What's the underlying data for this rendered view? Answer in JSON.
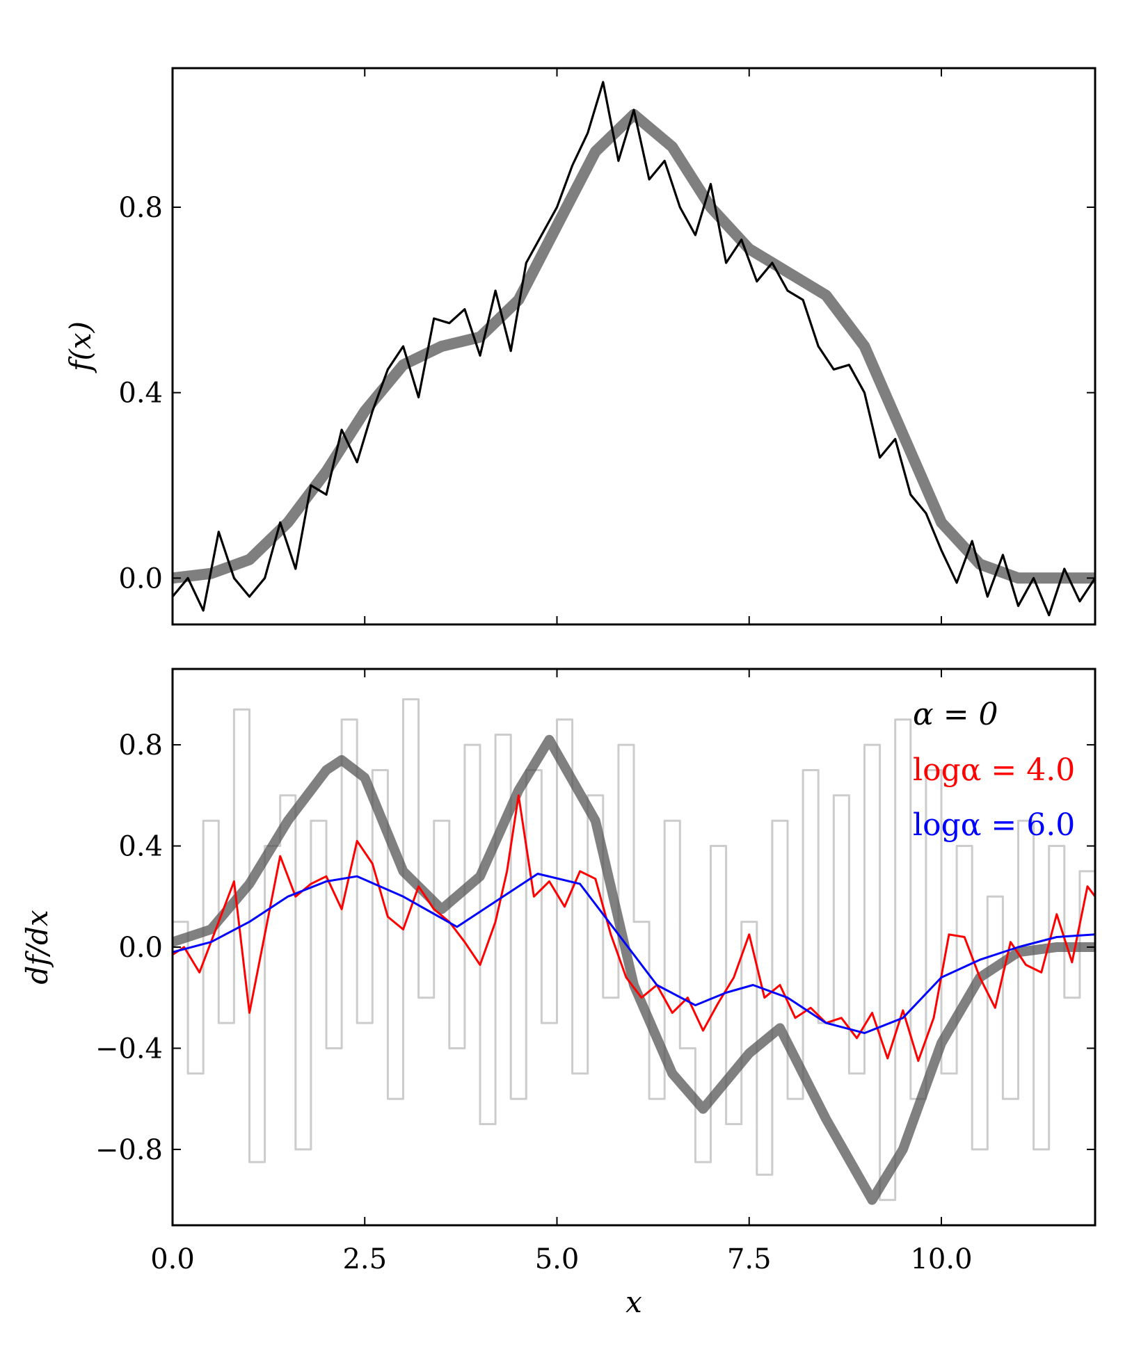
{
  "figure": {
    "shared_xlabel": "x"
  },
  "chart_data": [
    {
      "type": "line",
      "panel": "top",
      "xlabel": "",
      "ylabel": "f(x)",
      "xlim": [
        0,
        12
      ],
      "ylim": [
        -0.1,
        1.1
      ],
      "x_ticks": [
        0,
        2.5,
        5,
        7.5,
        10
      ],
      "y_ticks": [
        0.0,
        0.4,
        0.8
      ],
      "y_tick_labels": [
        "0.0",
        "0.4",
        "0.8"
      ],
      "grid": false,
      "series": [
        {
          "role": "true-function",
          "color": "#7f7f7f",
          "x": [
            0,
            0.5,
            1.0,
            1.5,
            2.0,
            2.5,
            3.0,
            3.5,
            4.0,
            4.5,
            5.0,
            5.5,
            6.0,
            6.5,
            7.0,
            7.5,
            8.0,
            8.5,
            9.0,
            9.5,
            10.0,
            10.5,
            11.0,
            11.5,
            12.0
          ],
          "y": [
            0.0,
            0.01,
            0.04,
            0.12,
            0.23,
            0.36,
            0.46,
            0.5,
            0.52,
            0.6,
            0.76,
            0.92,
            1.0,
            0.93,
            0.8,
            0.71,
            0.66,
            0.61,
            0.5,
            0.31,
            0.12,
            0.03,
            0.0,
            0.0,
            0.0
          ]
        },
        {
          "role": "noisy-data",
          "color": "#000000",
          "x": [
            0.0,
            0.2,
            0.4,
            0.6,
            0.8,
            1.0,
            1.2,
            1.4,
            1.6,
            1.8,
            2.0,
            2.2,
            2.4,
            2.6,
            2.8,
            3.0,
            3.2,
            3.4,
            3.6,
            3.8,
            4.0,
            4.2,
            4.4,
            4.6,
            4.8,
            5.0,
            5.2,
            5.4,
            5.6,
            5.8,
            6.0,
            6.2,
            6.4,
            6.6,
            6.8,
            7.0,
            7.2,
            7.4,
            7.6,
            7.8,
            8.0,
            8.2,
            8.4,
            8.6,
            8.8,
            9.0,
            9.2,
            9.4,
            9.6,
            9.8,
            10.0,
            10.2,
            10.4,
            10.6,
            10.8,
            11.0,
            11.2,
            11.4,
            11.6,
            11.8,
            12.0
          ],
          "y": [
            -0.04,
            0.0,
            -0.07,
            0.1,
            0.0,
            -0.04,
            0.0,
            0.12,
            0.02,
            0.2,
            0.18,
            0.32,
            0.25,
            0.36,
            0.45,
            0.5,
            0.39,
            0.56,
            0.55,
            0.58,
            0.48,
            0.62,
            0.49,
            0.68,
            0.74,
            0.8,
            0.89,
            0.96,
            1.07,
            0.9,
            1.01,
            0.86,
            0.9,
            0.8,
            0.74,
            0.85,
            0.68,
            0.73,
            0.64,
            0.68,
            0.62,
            0.6,
            0.5,
            0.45,
            0.46,
            0.4,
            0.26,
            0.3,
            0.18,
            0.14,
            0.06,
            -0.01,
            0.08,
            -0.04,
            0.05,
            -0.06,
            0.0,
            -0.08,
            0.02,
            -0.05,
            0.0
          ]
        }
      ]
    },
    {
      "type": "line",
      "panel": "bottom",
      "xlabel": "x",
      "ylabel": "df/dx",
      "xlim": [
        0,
        12
      ],
      "ylim": [
        -1.1,
        1.1
      ],
      "x_ticks": [
        0,
        2.5,
        5,
        7.5,
        10
      ],
      "x_tick_labels": [
        "0.0",
        "2.5",
        "5.0",
        "7.5",
        "10.0"
      ],
      "y_ticks": [
        -0.8,
        -0.4,
        0.0,
        0.4,
        0.8
      ],
      "y_tick_labels": [
        "−0.8",
        "−0.4",
        "0.0",
        "0.4",
        "0.8"
      ],
      "grid": false,
      "legend": {
        "placement": "top-right",
        "entries": [
          "α = 0",
          "logα = 4.0",
          "logα = 6.0"
        ]
      },
      "series": [
        {
          "role": "true-derivative",
          "color": "#555555",
          "x": [
            0,
            0.5,
            1.0,
            1.5,
            2.0,
            2.2,
            2.5,
            3.0,
            3.5,
            4.0,
            4.5,
            4.9,
            5.5,
            6.0,
            6.5,
            6.9,
            7.5,
            7.9,
            8.5,
            9.1,
            9.5,
            10.0,
            10.5,
            11.0,
            11.5,
            12.0
          ],
          "y": [
            0.02,
            0.07,
            0.25,
            0.5,
            0.7,
            0.74,
            0.67,
            0.3,
            0.15,
            0.28,
            0.62,
            0.82,
            0.5,
            -0.15,
            -0.5,
            -0.64,
            -0.42,
            -0.32,
            -0.68,
            -1.0,
            -0.8,
            -0.38,
            -0.12,
            -0.02,
            0.0,
            0.0
          ]
        },
        {
          "role": "noisy-derivative",
          "color": "#cccccc",
          "x": [
            0.0,
            0.2,
            0.4,
            0.6,
            0.8,
            1.0,
            1.2,
            1.4,
            1.6,
            1.8,
            2.0,
            2.2,
            2.4,
            2.6,
            2.8,
            3.0,
            3.2,
            3.4,
            3.6,
            3.8,
            4.0,
            4.2,
            4.4,
            4.6,
            4.8,
            5.0,
            5.2,
            5.4,
            5.6,
            5.8,
            6.0,
            6.2,
            6.4,
            6.6,
            6.8,
            7.0,
            7.2,
            7.4,
            7.6,
            7.8,
            8.0,
            8.2,
            8.4,
            8.6,
            8.8,
            9.0,
            9.2,
            9.4,
            9.6,
            9.8,
            10.0,
            10.2,
            10.4,
            10.6,
            10.8,
            11.0,
            11.2,
            11.4,
            11.6,
            11.8,
            12.0
          ],
          "y": [
            0.1,
            -0.5,
            0.5,
            -0.3,
            0.94,
            -0.85,
            0.4,
            0.6,
            -0.8,
            0.5,
            -0.4,
            0.9,
            -0.3,
            0.7,
            -0.6,
            0.98,
            -0.2,
            0.5,
            -0.4,
            0.8,
            -0.7,
            0.84,
            -0.6,
            0.7,
            -0.3,
            0.9,
            -0.5,
            0.6,
            -0.2,
            0.8,
            0.1,
            -0.6,
            0.5,
            -0.4,
            -0.85,
            0.4,
            -0.7,
            0.1,
            -0.9,
            0.5,
            -0.6,
            0.7,
            -0.3,
            0.6,
            -0.5,
            0.8,
            -1.0,
            0.9,
            -0.6,
            0.7,
            -0.5,
            0.4,
            -0.8,
            0.2,
            -0.6,
            0.5,
            -0.8,
            0.4,
            -0.2,
            0.3,
            0.2
          ]
        },
        {
          "role": "regularized-log4",
          "color": "#ff0000",
          "x": [
            0.0,
            0.15,
            0.35,
            0.6,
            0.8,
            1.0,
            1.2,
            1.4,
            1.6,
            1.8,
            2.0,
            2.2,
            2.4,
            2.6,
            2.8,
            3.0,
            3.2,
            3.4,
            3.6,
            3.8,
            4.0,
            4.2,
            4.35,
            4.5,
            4.7,
            4.9,
            5.1,
            5.3,
            5.5,
            5.7,
            5.9,
            6.1,
            6.3,
            6.5,
            6.7,
            6.9,
            7.1,
            7.3,
            7.5,
            7.7,
            7.9,
            8.1,
            8.3,
            8.5,
            8.7,
            8.9,
            9.1,
            9.3,
            9.5,
            9.7,
            9.9,
            10.1,
            10.3,
            10.5,
            10.7,
            10.9,
            11.1,
            11.3,
            11.5,
            11.7,
            11.9,
            12.0
          ],
          "y": [
            -0.03,
            0.0,
            -0.1,
            0.1,
            0.26,
            -0.26,
            0.05,
            0.36,
            0.2,
            0.25,
            0.28,
            0.15,
            0.42,
            0.33,
            0.12,
            0.07,
            0.24,
            0.15,
            0.1,
            0.02,
            -0.07,
            0.1,
            0.3,
            0.6,
            0.2,
            0.26,
            0.16,
            0.3,
            0.27,
            0.05,
            -0.12,
            -0.2,
            -0.15,
            -0.26,
            -0.2,
            -0.33,
            -0.22,
            -0.12,
            0.05,
            -0.2,
            -0.15,
            -0.28,
            -0.24,
            -0.3,
            -0.28,
            -0.36,
            -0.26,
            -0.44,
            -0.25,
            -0.45,
            -0.28,
            0.05,
            0.04,
            -0.12,
            -0.24,
            0.02,
            -0.07,
            -0.1,
            0.13,
            -0.06,
            0.24,
            0.2
          ]
        },
        {
          "role": "regularized-log6",
          "color": "#0000ff",
          "x": [
            0,
            0.5,
            1.0,
            1.5,
            2.0,
            2.4,
            3.0,
            3.7,
            4.2,
            4.75,
            5.3,
            5.8,
            6.3,
            6.8,
            7.2,
            7.55,
            8.0,
            8.5,
            9.0,
            9.5,
            10.0,
            10.5,
            11.0,
            11.5,
            12.0
          ],
          "y": [
            -0.02,
            0.02,
            0.1,
            0.2,
            0.26,
            0.28,
            0.2,
            0.08,
            0.18,
            0.29,
            0.25,
            0.05,
            -0.15,
            -0.23,
            -0.18,
            -0.15,
            -0.2,
            -0.3,
            -0.34,
            -0.28,
            -0.12,
            -0.05,
            0.0,
            0.04,
            0.05
          ]
        }
      ]
    }
  ]
}
